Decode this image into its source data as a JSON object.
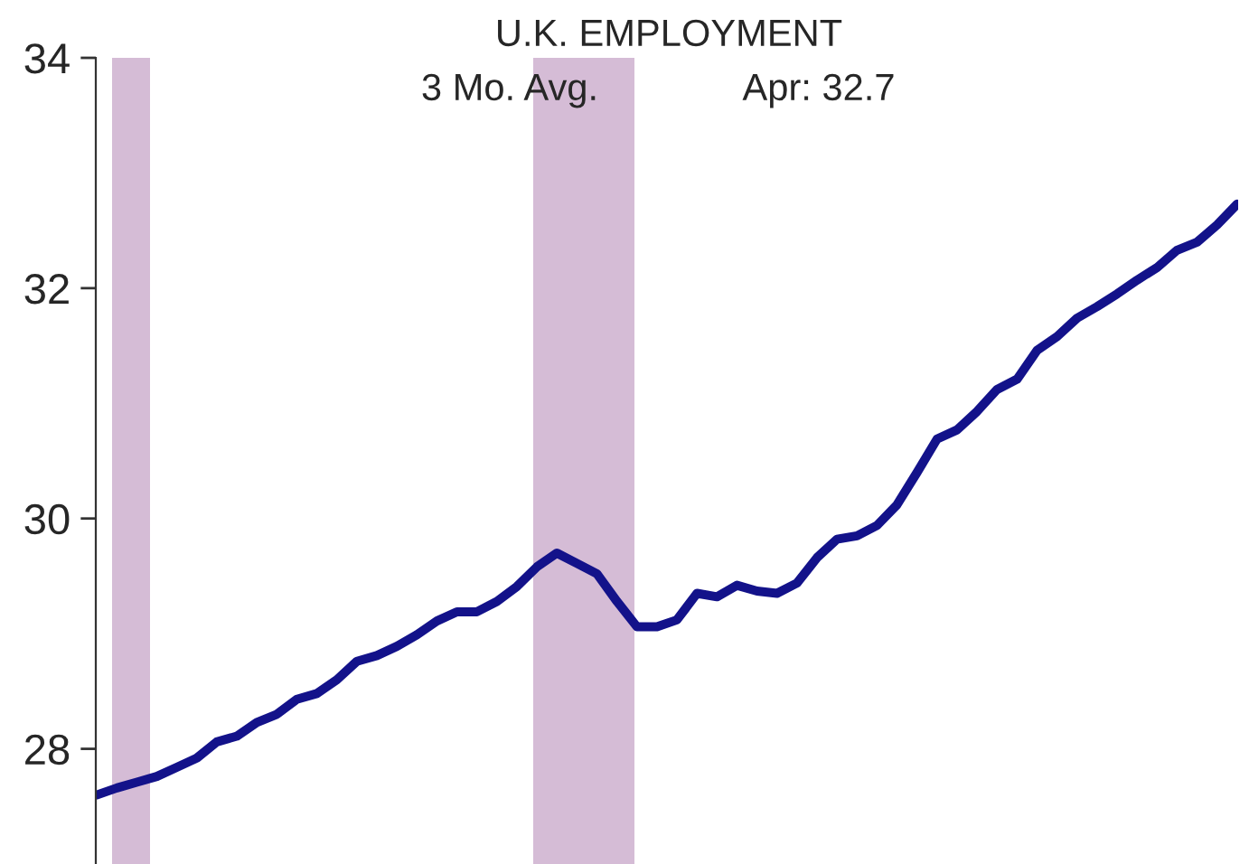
{
  "chart_data": {
    "type": "line",
    "title": "U.K. EMPLOYMENT",
    "subtitle": "3 Mo. Avg.",
    "annotations": [
      "Apr: 32.7"
    ],
    "categories": [
      null,
      null,
      null,
      null,
      null,
      null,
      null,
      null,
      null,
      null,
      null,
      null,
      null,
      null,
      null,
      null,
      null,
      null,
      null,
      null,
      null,
      null,
      null,
      null,
      null,
      null,
      null,
      null,
      null,
      null,
      null,
      null,
      null,
      null,
      null,
      null,
      null,
      null,
      null,
      null,
      null,
      null,
      null,
      null,
      null,
      null,
      null,
      null,
      null,
      null,
      null,
      null,
      null,
      null,
      null,
      null,
      null,
      null
    ],
    "series": [
      {
        "color": "#13128a",
        "values": [
          27.6,
          27.66,
          27.71,
          27.76,
          27.84,
          27.92,
          28.06,
          28.11,
          28.23,
          28.3,
          28.43,
          28.48,
          28.6,
          28.76,
          28.81,
          28.89,
          28.99,
          29.11,
          29.19,
          29.19,
          29.28,
          29.41,
          29.58,
          29.7,
          29.61,
          29.52,
          29.28,
          29.06,
          29.06,
          29.12,
          29.35,
          29.32,
          29.42,
          29.37,
          29.35,
          29.44,
          29.66,
          29.82,
          29.85,
          29.94,
          30.12,
          30.4,
          30.69,
          30.77,
          30.93,
          31.12,
          31.21,
          31.46,
          31.58,
          31.74,
          31.84,
          31.95,
          32.07,
          32.18,
          32.33,
          32.4,
          32.55,
          32.73
        ]
      }
    ],
    "ylim": [
      27,
      34
    ],
    "yticks": [
      28,
      30,
      32,
      34
    ],
    "tick_labels": "y",
    "line_style": "solid"
  }
}
